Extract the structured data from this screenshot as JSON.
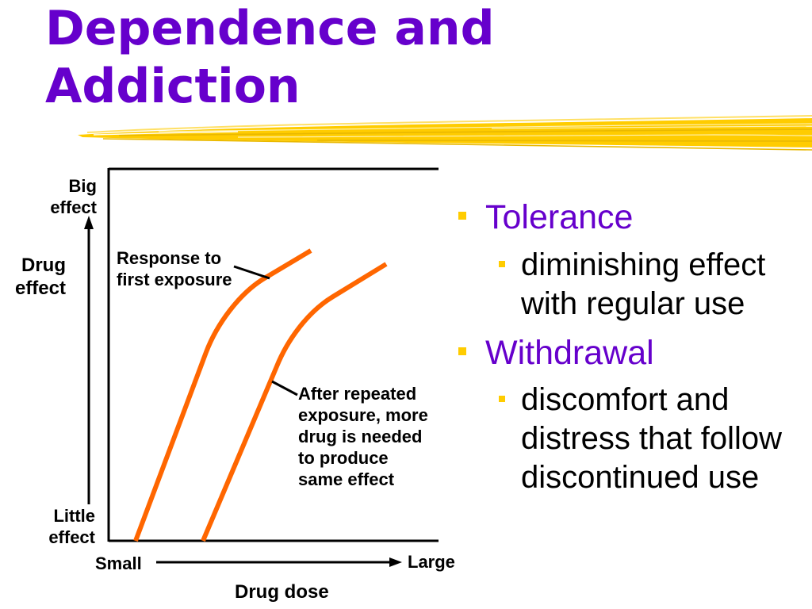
{
  "colors": {
    "title": "#6600CC",
    "accent_yellow": "#FFCC00",
    "curve_orange": "#FF6600",
    "text": "#000000"
  },
  "icons": {
    "bullet": "square-bullet",
    "axis_arrow": "arrow"
  },
  "slide": {
    "title": "Dependence and Addiction"
  },
  "diagram": {
    "y_axis": {
      "top_label": "Big effect",
      "title": "Drug effect",
      "bottom_label": "Little effect"
    },
    "x_axis": {
      "left_label": "Small",
      "right_label": "Large",
      "title": "Drug dose"
    },
    "curves": [
      {
        "label": "Response to first exposure"
      },
      {
        "label_lines": [
          "After repeated",
          "exposure, more",
          "drug is needed",
          "to produce",
          "same effect"
        ]
      }
    ]
  },
  "bullets": [
    {
      "text": "Tolerance",
      "detail": "diminishing effect with regular use"
    },
    {
      "text": "Withdrawal",
      "detail": "discomfort and distress that follow discontinued use"
    }
  ]
}
